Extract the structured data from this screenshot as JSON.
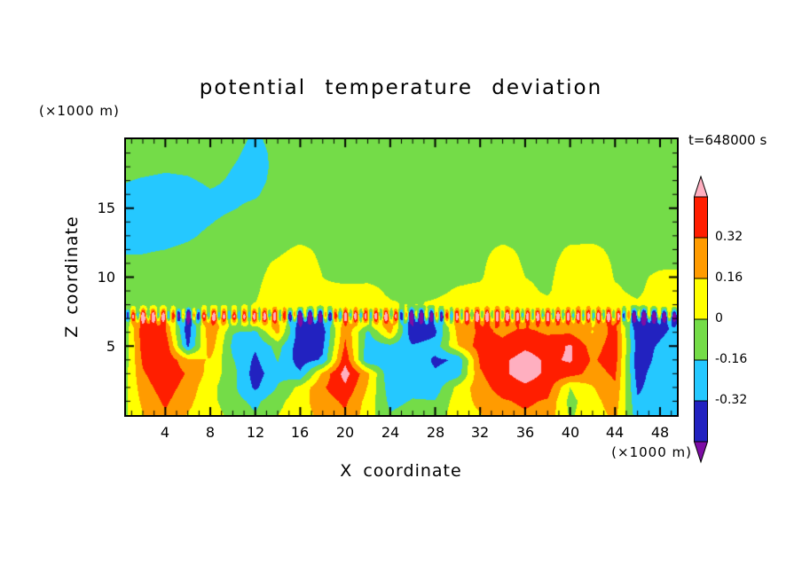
{
  "title": "potential temperature deviation",
  "annotations": {
    "time_label": "t=648000 s",
    "y_units_label": "(×1000 m)",
    "x_units_label": "(×1000 m)"
  },
  "axes": {
    "x_label": "X coordinate",
    "z_label": "Z coordinate"
  },
  "chart_data": {
    "type": "heatmap",
    "title": "potential temperature deviation",
    "xlabel": "X coordinate",
    "ylabel": "Z coordinate",
    "x_units": "×1000 m",
    "z_units": "×1000 m",
    "time_annotation": "t=648000 s",
    "xlim": [
      0.5,
      49.5
    ],
    "zlim": [
      0,
      20
    ],
    "x_ticks": [
      4,
      8,
      12,
      16,
      20,
      24,
      28,
      32,
      36,
      40,
      44,
      48
    ],
    "z_ticks": [
      5,
      10,
      15
    ],
    "grid_on": false,
    "legend_position": "right-colorbar",
    "colorbar": {
      "levels": [
        -0.48,
        -0.32,
        -0.16,
        0,
        0.16,
        0.32,
        0.48
      ],
      "labels": [
        "0.32",
        "0.16",
        "0",
        "-0.16",
        "-0.32"
      ],
      "colors": [
        "#7D0DA5",
        "#2222C0",
        "#25C8FF",
        "#74DC48",
        "#FFFF00",
        "#FF9B00",
        "#FF1E00",
        "#FFAFC0"
      ]
    },
    "grid": {
      "x_start": 0,
      "x_step": 2,
      "z_start": 20,
      "z_step": -1,
      "values": [
        [
          -0.05,
          -0.05,
          -0.05,
          -0.05,
          -0.06,
          -0.1,
          -0.19,
          -0.1,
          -0.05,
          -0.05,
          -0.08,
          -0.05,
          -0.05,
          -0.05,
          -0.05,
          -0.05,
          -0.05,
          -0.05,
          -0.05,
          -0.05,
          -0.05,
          -0.05,
          -0.05,
          -0.05,
          -0.05,
          -0.05
        ],
        [
          -0.06,
          -0.06,
          -0.08,
          -0.08,
          -0.08,
          -0.13,
          -0.21,
          -0.12,
          -0.06,
          -0.05,
          -0.1,
          -0.06,
          -0.05,
          -0.05,
          -0.05,
          -0.05,
          -0.05,
          -0.05,
          -0.05,
          -0.05,
          -0.05,
          -0.05,
          -0.05,
          -0.05,
          -0.05,
          -0.05
        ],
        [
          -0.08,
          -0.1,
          -0.13,
          -0.12,
          -0.1,
          -0.16,
          -0.22,
          -0.12,
          -0.06,
          -0.05,
          -0.08,
          -0.05,
          -0.05,
          -0.05,
          -0.05,
          -0.05,
          -0.05,
          -0.05,
          -0.05,
          -0.05,
          -0.05,
          -0.05,
          -0.05,
          -0.05,
          -0.05,
          -0.05
        ],
        [
          -0.14,
          -0.18,
          -0.2,
          -0.18,
          -0.13,
          -0.18,
          -0.21,
          -0.11,
          -0.05,
          -0.05,
          -0.06,
          -0.05,
          -0.05,
          -0.05,
          -0.05,
          -0.05,
          -0.05,
          -0.05,
          -0.05,
          -0.05,
          -0.05,
          -0.05,
          -0.05,
          -0.05,
          -0.05,
          -0.05
        ],
        [
          -0.19,
          -0.24,
          -0.27,
          -0.24,
          -0.18,
          -0.2,
          -0.18,
          -0.08,
          -0.05,
          -0.05,
          -0.05,
          -0.05,
          -0.05,
          -0.05,
          -0.05,
          -0.05,
          -0.05,
          -0.05,
          -0.05,
          -0.05,
          -0.05,
          -0.05,
          -0.05,
          -0.05,
          -0.05,
          -0.05
        ],
        [
          -0.21,
          -0.26,
          -0.29,
          -0.26,
          -0.21,
          -0.17,
          -0.12,
          -0.06,
          -0.05,
          -0.05,
          -0.05,
          -0.05,
          -0.05,
          -0.05,
          -0.05,
          -0.05,
          -0.05,
          -0.05,
          -0.05,
          -0.05,
          -0.05,
          -0.05,
          -0.05,
          -0.05,
          -0.05,
          -0.05
        ],
        [
          -0.21,
          -0.26,
          -0.28,
          -0.23,
          -0.17,
          -0.11,
          -0.07,
          -0.05,
          -0.05,
          -0.05,
          -0.05,
          -0.05,
          -0.05,
          -0.05,
          -0.05,
          -0.05,
          -0.05,
          -0.05,
          -0.05,
          -0.05,
          -0.05,
          -0.05,
          -0.04,
          -0.04,
          -0.05,
          -0.05
        ],
        [
          -0.19,
          -0.22,
          -0.24,
          -0.19,
          -0.12,
          -0.07,
          -0.05,
          -0.05,
          -0.05,
          -0.05,
          -0.05,
          -0.05,
          -0.05,
          -0.05,
          -0.05,
          -0.05,
          -0.05,
          -0.05,
          -0.05,
          -0.05,
          -0.04,
          -0.04,
          -0.04,
          -0.04,
          -0.05,
          -0.05
        ],
        [
          -0.17,
          -0.18,
          -0.16,
          -0.12,
          -0.08,
          -0.05,
          -0.05,
          -0.03,
          0.03,
          -0.03,
          -0.05,
          -0.05,
          -0.05,
          -0.05,
          -0.05,
          -0.05,
          -0.04,
          0.03,
          -0.03,
          -0.05,
          0.02,
          0.03,
          -0.03,
          -0.05,
          -0.05,
          -0.05
        ],
        [
          -0.14,
          -0.12,
          -0.09,
          -0.07,
          -0.05,
          -0.04,
          -0.04,
          0.02,
          0.08,
          -0.02,
          -0.04,
          -0.05,
          -0.05,
          -0.05,
          -0.05,
          -0.05,
          -0.03,
          0.08,
          -0.02,
          -0.04,
          0.06,
          0.08,
          -0.02,
          -0.05,
          -0.04,
          -0.04
        ],
        [
          -0.11,
          -0.08,
          -0.06,
          -0.05,
          -0.04,
          -0.03,
          -0.03,
          0.05,
          0.11,
          0.0,
          -0.03,
          -0.04,
          -0.04,
          -0.05,
          -0.05,
          -0.04,
          -0.02,
          0.11,
          0.0,
          -0.03,
          0.08,
          0.11,
          -0.01,
          -0.04,
          0.04,
          0.06
        ],
        [
          -0.08,
          -0.06,
          -0.05,
          -0.04,
          -0.03,
          -0.03,
          -0.02,
          0.08,
          0.12,
          0.02,
          0.03,
          0.05,
          -0.03,
          -0.04,
          -0.04,
          0.02,
          0.04,
          0.12,
          0.03,
          -0.02,
          0.1,
          0.12,
          0.02,
          -0.03,
          0.08,
          0.1
        ],
        [
          -0.05,
          -0.04,
          -0.03,
          -0.03,
          -0.02,
          -0.02,
          0.0,
          0.1,
          0.12,
          0.04,
          0.06,
          0.08,
          0.02,
          -0.02,
          0.03,
          0.06,
          0.08,
          0.12,
          0.05,
          0.04,
          0.1,
          0.12,
          0.05,
          0.02,
          0.1,
          0.12
        ],
        [
          -0.2,
          0.4,
          0.3,
          -0.45,
          0.35,
          0.1,
          0.25,
          0.3,
          -0.5,
          -0.35,
          0.3,
          0.15,
          0.35,
          -0.5,
          -0.3,
          0.25,
          0.35,
          0.3,
          0.25,
          0.3,
          0.25,
          0.2,
          0.35,
          -0.5,
          -0.4,
          -0.3
        ],
        [
          -0.25,
          0.42,
          0.35,
          -0.42,
          0.3,
          -0.15,
          -0.2,
          0.2,
          -0.45,
          -0.4,
          0.3,
          -0.2,
          0.2,
          -0.45,
          -0.35,
          0.2,
          0.35,
          0.3,
          0.35,
          0.3,
          0.3,
          0.15,
          0.4,
          -0.45,
          -0.35,
          -0.25
        ],
        [
          -0.25,
          0.4,
          0.45,
          -0.35,
          0.25,
          -0.2,
          -0.3,
          -0.1,
          -0.42,
          -0.35,
          0.35,
          -0.25,
          -0.2,
          -0.3,
          -0.25,
          0.15,
          0.4,
          0.35,
          0.45,
          0.4,
          0.5,
          0.25,
          0.4,
          -0.4,
          -0.3,
          -0.2
        ],
        [
          -0.2,
          0.35,
          0.45,
          0.2,
          0.15,
          -0.15,
          -0.35,
          -0.15,
          -0.4,
          -0.3,
          0.45,
          -0.3,
          -0.25,
          -0.2,
          -0.35,
          -0.3,
          0.35,
          0.45,
          0.55,
          0.45,
          0.5,
          0.3,
          0.4,
          -0.45,
          -0.25,
          -0.25
        ],
        [
          -0.15,
          0.3,
          0.45,
          0.3,
          0.1,
          -0.1,
          -0.4,
          -0.2,
          -0.3,
          0.2,
          0.55,
          0.2,
          -0.3,
          -0.25,
          -0.3,
          -0.25,
          0.3,
          0.45,
          0.55,
          0.45,
          0.4,
          0.25,
          0.35,
          -0.4,
          -0.2,
          -0.25
        ],
        [
          -0.12,
          0.25,
          0.4,
          0.25,
          0.05,
          -0.12,
          -0.35,
          -0.15,
          0.05,
          0.3,
          0.45,
          0.15,
          -0.25,
          -0.2,
          -0.25,
          0.05,
          0.25,
          0.4,
          0.45,
          0.4,
          0.0,
          0.15,
          0.3,
          -0.35,
          -0.22,
          -0.25
        ],
        [
          -0.1,
          0.2,
          0.35,
          0.2,
          0.05,
          -0.1,
          -0.2,
          -0.05,
          0.1,
          0.25,
          0.35,
          0.1,
          -0.2,
          -0.15,
          -0.15,
          0.08,
          0.2,
          0.3,
          0.35,
          0.3,
          -0.05,
          0.1,
          0.25,
          -0.3,
          -0.25,
          -0.22
        ],
        [
          -0.08,
          0.15,
          0.3,
          0.15,
          0.08,
          -0.05,
          -0.15,
          0.0,
          0.1,
          0.2,
          0.3,
          0.08,
          -0.15,
          -0.1,
          -0.1,
          0.1,
          0.15,
          0.25,
          0.3,
          0.25,
          -0.02,
          0.08,
          0.2,
          -0.25,
          -0.22,
          -0.2
        ]
      ]
    },
    "interface_ripple": {
      "z_center": 7.2,
      "z_width": 0.45,
      "amplitude": 0.42,
      "wavelength": 0.9
    }
  }
}
